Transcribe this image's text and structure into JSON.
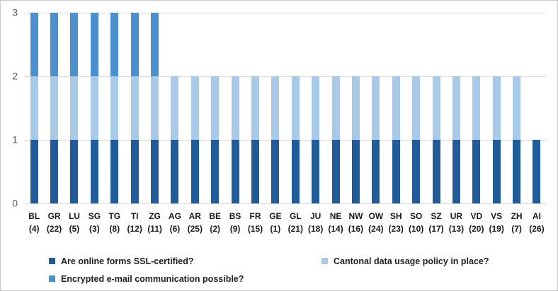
{
  "chart_data": {
    "type": "bar",
    "variant": "stacked",
    "title": "",
    "xlabel": "",
    "ylabel": "",
    "ylim": [
      0,
      3
    ],
    "yticks": [
      0,
      1,
      2,
      3
    ],
    "grid": true,
    "legend_position": "bottom",
    "categories": [
      "BL",
      "GR",
      "LU",
      "SG",
      "TG",
      "TI",
      "ZG",
      "AG",
      "AR",
      "BE",
      "BS",
      "FR",
      "GE",
      "GL",
      "JU",
      "NE",
      "NW",
      "OW",
      "SH",
      "SO",
      "SZ",
      "UR",
      "VD",
      "VS",
      "ZH",
      "AI"
    ],
    "category_sublabels": [
      "(4)",
      "(22)",
      "(5)",
      "(3)",
      "(8)",
      "(12)",
      "(11)",
      "(6)",
      "(25)",
      "(2)",
      "(9)",
      "(15)",
      "(1)",
      "(21)",
      "(18)",
      "(14)",
      "(16)",
      "(24)",
      "(23)",
      "(10)",
      "(17)",
      "(13)",
      "(20)",
      "(19)",
      "(7)",
      "(26)"
    ],
    "series": [
      {
        "name": "Are online forms SSL-certified?",
        "color": "#1F5C99",
        "values": [
          1,
          1,
          1,
          1,
          1,
          1,
          1,
          1,
          1,
          1,
          1,
          1,
          1,
          1,
          1,
          1,
          1,
          1,
          1,
          1,
          1,
          1,
          1,
          1,
          1,
          1
        ]
      },
      {
        "name": "Cantonal data usage policy in place?",
        "color": "#A9C9E8",
        "values": [
          1,
          1,
          1,
          1,
          1,
          1,
          1,
          1,
          1,
          1,
          1,
          1,
          1,
          1,
          1,
          1,
          1,
          1,
          1,
          1,
          1,
          1,
          1,
          1,
          1,
          0
        ]
      },
      {
        "name": "Encrypted e-mail communication possible?",
        "color": "#4A8FCE",
        "values": [
          1,
          1,
          1,
          1,
          1,
          1,
          1,
          0,
          0,
          0,
          0,
          0,
          0,
          0,
          0,
          0,
          0,
          0,
          0,
          0,
          0,
          0,
          0,
          0,
          0,
          0
        ]
      }
    ],
    "colors": {
      "gridline": "#d9d9d9",
      "axis_tick_text": "#595959",
      "category_text": "#191919",
      "legend_text": "#1f1f1f",
      "frame_border": "#c9c9c9",
      "background": "#ffffff"
    }
  }
}
